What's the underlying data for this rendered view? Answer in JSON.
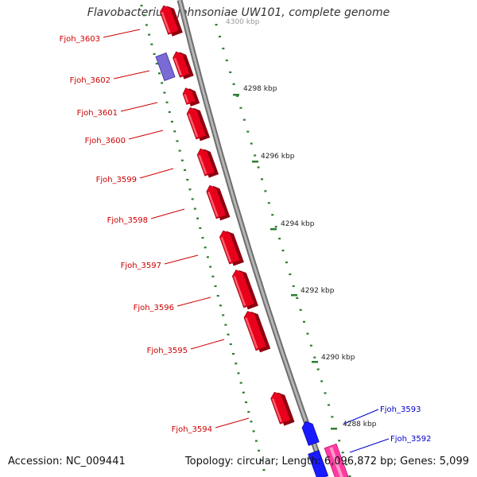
{
  "title": "Flavobacterium johnsoniae UW101, complete genome",
  "footer": {
    "accession": "Accession: NC_009441",
    "topology": "Topology: circular; Length: 6,096,872 bp; Genes: 5,099"
  },
  "colors": {
    "gene_forward": "#e8001c",
    "gene_reverse_dark": "#1a1aff",
    "gene_purple": "#7a6ad6",
    "gene_pink": "#ff3aa0",
    "label_red": "#cc0000",
    "label_blue": "#0000cc",
    "tick": "#2e7d32",
    "backbone": "#8a8a8a"
  },
  "kbp_ticks": [
    "4300 kbp",
    "4298 kbp",
    "4296 kbp",
    "4294 kbp",
    "4292 kbp",
    "4290 kbp",
    "4288 kbp"
  ],
  "genes": [
    {
      "label": "Fjoh_3603",
      "strand": "red"
    },
    {
      "label": "Fjoh_3602",
      "strand": "red"
    },
    {
      "label": "Fjoh_3601",
      "strand": "red"
    },
    {
      "label": "Fjoh_3600",
      "strand": "red"
    },
    {
      "label": "Fjoh_3599",
      "strand": "red"
    },
    {
      "label": "Fjoh_3598",
      "strand": "red"
    },
    {
      "label": "Fjoh_3597",
      "strand": "red"
    },
    {
      "label": "Fjoh_3596",
      "strand": "red"
    },
    {
      "label": "Fjoh_3595",
      "strand": "red"
    },
    {
      "label": "Fjoh_3594",
      "strand": "red"
    },
    {
      "label": "Fjoh_3593",
      "strand": "blue"
    },
    {
      "label": "Fjoh_3592",
      "strand": "blue"
    }
  ]
}
